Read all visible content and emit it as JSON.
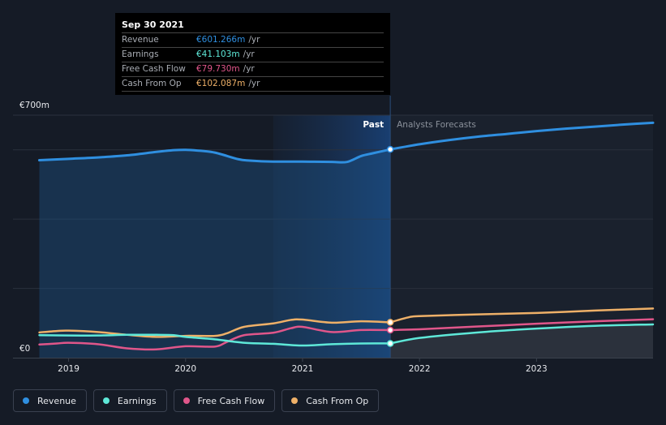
{
  "tooltip": {
    "date": "Sep 30 2021",
    "unit": "/yr",
    "rows": [
      {
        "label": "Revenue",
        "value": "€601.266m",
        "color": "#2f8fe0"
      },
      {
        "label": "Earnings",
        "value": "€41.103m",
        "color": "#5ee8d8"
      },
      {
        "label": "Free Cash Flow",
        "value": "€79.730m",
        "color": "#e0568a"
      },
      {
        "label": "Cash From Op",
        "value": "€102.087m",
        "color": "#eeb068"
      }
    ]
  },
  "legend": [
    {
      "label": "Revenue",
      "color": "#2f8fe0"
    },
    {
      "label": "Earnings",
      "color": "#5ee8d8"
    },
    {
      "label": "Free Cash Flow",
      "color": "#e0568a"
    },
    {
      "label": "Cash From Op",
      "color": "#eeb068"
    }
  ],
  "chart_data": {
    "type": "line",
    "y_top_label": "€700m",
    "y_zero_label": "€0",
    "ylim": [
      0,
      700
    ],
    "xlim": [
      2018.75,
      2023.996
    ],
    "x_tick_values": [
      2019,
      2020,
      2021,
      2022,
      2023
    ],
    "x_tick_labels": [
      "2019",
      "2020",
      "2021",
      "2022",
      "2023"
    ],
    "gridline_values": [
      200,
      400,
      600,
      700
    ],
    "past_label": "Past",
    "forecast_label": "Analysts Forecasts",
    "divider_x": 2021.75,
    "highlight_start": 2020.75,
    "series": [
      {
        "name": "Revenue",
        "color": "#2f8fe0",
        "area": true,
        "past": [
          [
            2018.75,
            570
          ],
          [
            2019.0,
            574
          ],
          [
            2019.25,
            578
          ],
          [
            2019.5,
            584
          ],
          [
            2019.75,
            594
          ],
          [
            2019.9,
            599
          ],
          [
            2020.0,
            600
          ],
          [
            2020.1,
            598
          ],
          [
            2020.25,
            592
          ],
          [
            2020.45,
            573
          ],
          [
            2020.55,
            569
          ],
          [
            2020.75,
            566
          ],
          [
            2021.0,
            566
          ],
          [
            2021.25,
            565
          ],
          [
            2021.38,
            565
          ],
          [
            2021.5,
            582
          ],
          [
            2021.6,
            590
          ],
          [
            2021.75,
            601.3
          ]
        ],
        "forecast": [
          [
            2021.75,
            601.3
          ],
          [
            2022.0,
            616
          ],
          [
            2022.25,
            628
          ],
          [
            2022.5,
            638
          ],
          [
            2022.75,
            646
          ],
          [
            2023.0,
            654
          ],
          [
            2023.25,
            661
          ],
          [
            2023.5,
            667
          ],
          [
            2023.75,
            673
          ],
          [
            2023.996,
            678
          ]
        ]
      },
      {
        "name": "Cash From Op",
        "color": "#eeb068",
        "area": false,
        "past": [
          [
            2018.75,
            73
          ],
          [
            2018.9,
            77
          ],
          [
            2019.0,
            78
          ],
          [
            2019.25,
            74
          ],
          [
            2019.5,
            66
          ],
          [
            2019.75,
            60
          ],
          [
            2020.0,
            63
          ],
          [
            2020.25,
            63
          ],
          [
            2020.35,
            70
          ],
          [
            2020.5,
            89
          ],
          [
            2020.75,
            99
          ],
          [
            2020.9,
            109
          ],
          [
            2021.0,
            110
          ],
          [
            2021.25,
            101
          ],
          [
            2021.5,
            105
          ],
          [
            2021.75,
            102.1
          ]
        ],
        "forecast": [
          [
            2021.75,
            102.1
          ],
          [
            2021.9,
            116
          ],
          [
            2022.0,
            120
          ],
          [
            2022.5,
            125
          ],
          [
            2023.0,
            129
          ],
          [
            2023.5,
            136
          ],
          [
            2023.996,
            142
          ]
        ]
      },
      {
        "name": "Free Cash Flow",
        "color": "#e0568a",
        "area": false,
        "past": [
          [
            2018.75,
            38
          ],
          [
            2018.9,
            41
          ],
          [
            2019.0,
            43
          ],
          [
            2019.25,
            39
          ],
          [
            2019.5,
            27
          ],
          [
            2019.75,
            24
          ],
          [
            2020.0,
            33
          ],
          [
            2020.25,
            32
          ],
          [
            2020.35,
            45
          ],
          [
            2020.5,
            65
          ],
          [
            2020.75,
            72
          ],
          [
            2020.9,
            85
          ],
          [
            2021.0,
            89
          ],
          [
            2021.25,
            74
          ],
          [
            2021.5,
            80
          ],
          [
            2021.75,
            79.7
          ]
        ],
        "forecast": [
          [
            2021.75,
            79.7
          ],
          [
            2022.0,
            82
          ],
          [
            2022.5,
            90
          ],
          [
            2023.0,
            98
          ],
          [
            2023.5,
            105
          ],
          [
            2023.996,
            111
          ]
        ]
      },
      {
        "name": "Earnings",
        "color": "#5ee8d8",
        "area": false,
        "past": [
          [
            2018.75,
            65
          ],
          [
            2019.0,
            64
          ],
          [
            2019.25,
            64
          ],
          [
            2019.5,
            66
          ],
          [
            2019.75,
            66
          ],
          [
            2019.9,
            65
          ],
          [
            2020.0,
            60
          ],
          [
            2020.25,
            53
          ],
          [
            2020.5,
            43
          ],
          [
            2020.75,
            40
          ],
          [
            2021.0,
            35
          ],
          [
            2021.25,
            39
          ],
          [
            2021.5,
            41
          ],
          [
            2021.75,
            41.1
          ]
        ],
        "forecast": [
          [
            2021.75,
            41.1
          ],
          [
            2022.0,
            57
          ],
          [
            2022.5,
            73
          ],
          [
            2023.0,
            84
          ],
          [
            2023.5,
            92
          ],
          [
            2023.996,
            96
          ]
        ]
      }
    ]
  }
}
